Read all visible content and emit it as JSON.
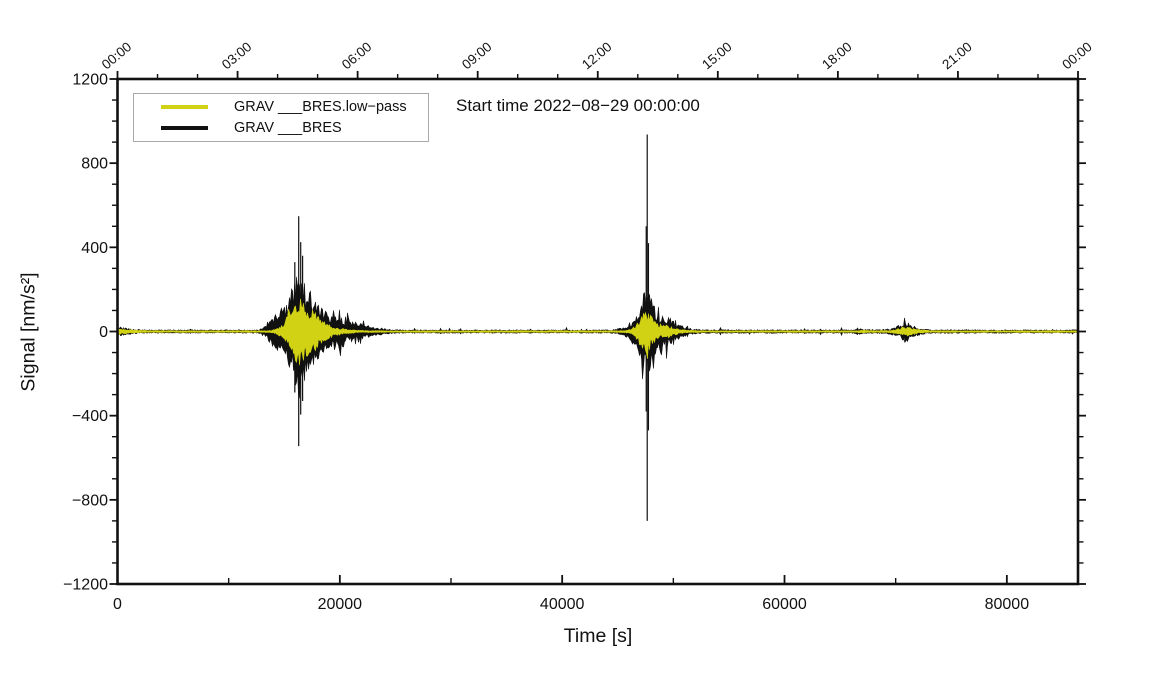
{
  "chart_data": {
    "type": "line",
    "title": "Start time 2022−08−29 00:00:00",
    "xlabel": "Time [s]",
    "ylabel": "Signal [nm/s²]",
    "xlim": [
      0,
      86400
    ],
    "ylim": [
      -1200,
      1200
    ],
    "x_ticks_major": [
      0,
      20000,
      40000,
      60000,
      80000
    ],
    "x_minor_step": 10000,
    "y_ticks_major": [
      -1200,
      -800,
      -400,
      0,
      400,
      800,
      1200
    ],
    "y_minor_step": 100,
    "grid": false,
    "top_axis": {
      "major_step_s": 10800,
      "minor_step_s": 3600,
      "labels": [
        "00:00",
        "03:00",
        "06:00",
        "09:00",
        "12:00",
        "15:00",
        "18:00",
        "21:00",
        "00:00"
      ],
      "label_rotation_deg": -40
    },
    "legend": {
      "position": "top-left",
      "entries": [
        {
          "label": "GRAV ___BRES.low−pass",
          "color": "#d2d214"
        },
        {
          "label": "GRAV ___BRES",
          "color": "#111111"
        }
      ]
    },
    "events": [
      {
        "center_s": 16300,
        "peak_amplitude_nm_s2": 550,
        "lowpass_peak": 170,
        "description": "seismic burst 1"
      },
      {
        "center_s": 47650,
        "peak_amplitude_nm_s2": 940,
        "lowpass_peak": 110,
        "description": "seismic burst 2 (tall narrow spike)"
      },
      {
        "center_s": 70800,
        "peak_amplitude_nm_s2": 50,
        "lowpass_peak": 27,
        "description": "small burst 3"
      }
    ],
    "series": [
      {
        "name": "GRAV ___BRES",
        "color": "#111111",
        "hair_prob": 0.16,
        "hair_min_amp": 35,
        "speck_prob": 0.02,
        "envelope": [
          [
            0,
            24
          ],
          [
            600,
            18
          ],
          [
            1500,
            11
          ],
          [
            3000,
            8
          ],
          [
            12700,
            8
          ],
          [
            13300,
            28
          ],
          [
            14100,
            85
          ],
          [
            15100,
            125
          ],
          [
            15600,
            185
          ],
          [
            16000,
            265
          ],
          [
            16300,
            310
          ],
          [
            16600,
            260
          ],
          [
            17100,
            225
          ],
          [
            17700,
            155
          ],
          [
            18400,
            110
          ],
          [
            19400,
            75
          ],
          [
            20400,
            55
          ],
          [
            21200,
            48
          ],
          [
            22200,
            34
          ],
          [
            23600,
            18
          ],
          [
            24600,
            10
          ],
          [
            25800,
            8
          ],
          [
            44400,
            8
          ],
          [
            45000,
            13
          ],
          [
            45500,
            22
          ],
          [
            46000,
            34
          ],
          [
            46400,
            60
          ],
          [
            46800,
            100
          ],
          [
            47150,
            155
          ],
          [
            47450,
            205
          ],
          [
            47650,
            215
          ],
          [
            47950,
            175
          ],
          [
            48250,
            125
          ],
          [
            48700,
            90
          ],
          [
            49200,
            68
          ],
          [
            49600,
            74
          ],
          [
            50100,
            48
          ],
          [
            50800,
            28
          ],
          [
            51600,
            14
          ],
          [
            52600,
            9
          ],
          [
            66000,
            8
          ],
          [
            66800,
            14
          ],
          [
            67600,
            10
          ],
          [
            68800,
            10
          ],
          [
            69500,
            14
          ],
          [
            70100,
            26
          ],
          [
            70500,
            38
          ],
          [
            70800,
            50
          ],
          [
            71100,
            42
          ],
          [
            71600,
            28
          ],
          [
            72300,
            15
          ],
          [
            73200,
            9
          ],
          [
            86400,
            8
          ]
        ],
        "spikes": [
          [
            15950,
            330,
            -290
          ],
          [
            16300,
            548,
            -545
          ],
          [
            16480,
            425,
            -395
          ],
          [
            16650,
            360,
            -330
          ],
          [
            47560,
            500,
            -380
          ],
          [
            47650,
            936,
            -900
          ],
          [
            47760,
            420,
            -470
          ],
          [
            70820,
            50,
            -52
          ]
        ]
      },
      {
        "name": "GRAV ___BRES.low−pass",
        "color": "#d2d214",
        "hair_prob": 0.05,
        "hair_min_amp": 60,
        "speck_prob": 0,
        "envelope": [
          [
            0,
            15
          ],
          [
            900,
            10
          ],
          [
            2200,
            6
          ],
          [
            3800,
            4.5
          ],
          [
            13500,
            4.5
          ],
          [
            14200,
            10
          ],
          [
            14900,
            34
          ],
          [
            15400,
            78
          ],
          [
            15800,
            118
          ],
          [
            16150,
            152
          ],
          [
            16450,
            168
          ],
          [
            16900,
            146
          ],
          [
            17400,
            116
          ],
          [
            17900,
            86
          ],
          [
            18400,
            56
          ],
          [
            19000,
            34
          ],
          [
            19700,
            20
          ],
          [
            20700,
            10
          ],
          [
            21800,
            6
          ],
          [
            23000,
            4.5
          ],
          [
            45300,
            4.5
          ],
          [
            46000,
            9
          ],
          [
            46500,
            26
          ],
          [
            46950,
            62
          ],
          [
            47250,
            92
          ],
          [
            47550,
            108
          ],
          [
            47850,
            92
          ],
          [
            48150,
            68
          ],
          [
            48550,
            44
          ],
          [
            49050,
            30
          ],
          [
            49450,
            34
          ],
          [
            49950,
            20
          ],
          [
            50700,
            10
          ],
          [
            51500,
            6
          ],
          [
            52600,
            4.5
          ],
          [
            66300,
            4.5
          ],
          [
            66900,
            7
          ],
          [
            67600,
            5
          ],
          [
            69200,
            5
          ],
          [
            69900,
            9
          ],
          [
            70400,
            17
          ],
          [
            70800,
            27
          ],
          [
            71200,
            21
          ],
          [
            71900,
            12
          ],
          [
            72700,
            6
          ],
          [
            73600,
            4.5
          ],
          [
            86400,
            4.5
          ]
        ],
        "spikes": []
      }
    ]
  }
}
